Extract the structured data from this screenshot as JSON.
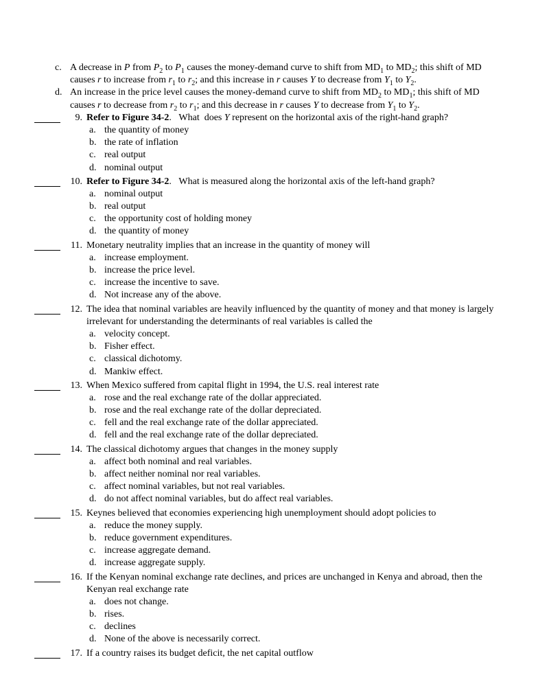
{
  "continuation_options": [
    {
      "letter": "c.",
      "text_html": "A decrease in <i>P</i> from <i>P</i><sub>2</sub> to <i>P</i><sub>1</sub> causes the money-demand curve to shift from MD<sub>1</sub> to MD<sub>2</sub>; this shift of MD causes <i>r</i> to increase from <i>r</i><sub>1</sub> to <i>r</i><sub>2</sub>; and this increase in <i>r</i> causes <i>Y</i> to decrease from <i>Y</i><sub>1</sub> to <i>Y</i><sub>2</sub>."
    },
    {
      "letter": "d.",
      "text_html": "An increase in the price level causes the money-demand curve to shift from MD<sub>2</sub> to MD<sub>1</sub>; this shift of MD causes <i>r</i> to decrease from <i>r</i><sub>2</sub> to <i>r</i><sub>1</sub>; and this decrease in <i>r</i> causes <i>Y</i> to decrease from <i>Y</i><sub>1</sub> to <i>Y</i><sub>2</sub>."
    }
  ],
  "questions": [
    {
      "num": "9.",
      "prompt_html": "<b>Refer to Figure 34-2</b>. &nbsp;&nbsp;What&nbsp; does <i>Y</i> represent on the horizontal axis of the right-hand graph?",
      "options": [
        {
          "letter": "a.",
          "text": "the quantity of money"
        },
        {
          "letter": "b.",
          "text": "the rate of inflation"
        },
        {
          "letter": "c.",
          "text": "real output"
        },
        {
          "letter": "d.",
          "text": "nominal output"
        }
      ]
    },
    {
      "num": "10.",
      "prompt_html": "<b>Refer to Figure 34-2</b>. &nbsp;&nbsp;What is measured along the horizontal axis of the left-hand graph?",
      "options": [
        {
          "letter": "a.",
          "text": "nominal output"
        },
        {
          "letter": "b.",
          "text": "real output"
        },
        {
          "letter": "c.",
          "text": "the opportunity cost of holding money"
        },
        {
          "letter": "d.",
          "text": "the quantity of money"
        }
      ]
    },
    {
      "num": "11.",
      "prompt_html": "Monetary neutrality implies that an increase in the quantity of money will",
      "options": [
        {
          "letter": "a.",
          "text": "increase employment."
        },
        {
          "letter": "b.",
          "text": "increase the price level."
        },
        {
          "letter": "c.",
          "text": "increase the incentive to save."
        },
        {
          "letter": "d.",
          "text": "Not increase any of the above."
        }
      ]
    },
    {
      "num": "12.",
      "prompt_html": "The idea that nominal variables are heavily influenced by the quantity of money and that money is largely irrelevant for understanding the determinants of real variables is called the",
      "options": [
        {
          "letter": "a.",
          "text": "velocity concept."
        },
        {
          "letter": "b.",
          "text": "Fisher effect."
        },
        {
          "letter": "c.",
          "text": "classical dichotomy."
        },
        {
          "letter": "d.",
          "text": "Mankiw effect."
        }
      ]
    },
    {
      "num": "13.",
      "prompt_html": "When Mexico suffered from capital flight in 1994, the U.S. real interest rate",
      "options": [
        {
          "letter": "a.",
          "text": "rose and the real exchange rate of the dollar appreciated."
        },
        {
          "letter": "b.",
          "text": "rose and the real exchange rate of the dollar depreciated."
        },
        {
          "letter": "c.",
          "text": "fell and the real exchange rate of the dollar appreciated."
        },
        {
          "letter": "d.",
          "text": "fell and the real exchange rate of the dollar depreciated."
        }
      ]
    },
    {
      "num": "14.",
      "prompt_html": "The classical dichotomy argues that changes in the money supply",
      "options": [
        {
          "letter": "a.",
          "text": "affect both nominal and real variables."
        },
        {
          "letter": "b.",
          "text": "affect neither nominal nor real variables."
        },
        {
          "letter": "c.",
          "text": "affect nominal variables, but not real variables."
        },
        {
          "letter": "d.",
          "text": "do not affect nominal variables, but do affect real variables."
        }
      ]
    },
    {
      "num": "15.",
      "prompt_html": "Keynes believed that economies experiencing high unemployment should adopt policies to",
      "options": [
        {
          "letter": "a.",
          "text": "reduce the money supply."
        },
        {
          "letter": "b.",
          "text": "reduce government expenditures."
        },
        {
          "letter": "c.",
          "text": "increase aggregate demand."
        },
        {
          "letter": "d.",
          "text": "increase aggregate supply."
        }
      ]
    },
    {
      "num": "16.",
      "prompt_html": "If the Kenyan nominal exchange rate declines, and prices are unchanged in Kenya and abroad, then the Kenyan real exchange rate",
      "options": [
        {
          "letter": "a.",
          "text": "does not change."
        },
        {
          "letter": "b.",
          "text": "rises."
        },
        {
          "letter": "c.",
          "text": "declines"
        },
        {
          "letter": "d.",
          "text": "None of the above is necessarily correct."
        }
      ]
    },
    {
      "num": "17.",
      "prompt_html": "If a country raises its budget deficit, the net capital outflow",
      "options": []
    }
  ]
}
